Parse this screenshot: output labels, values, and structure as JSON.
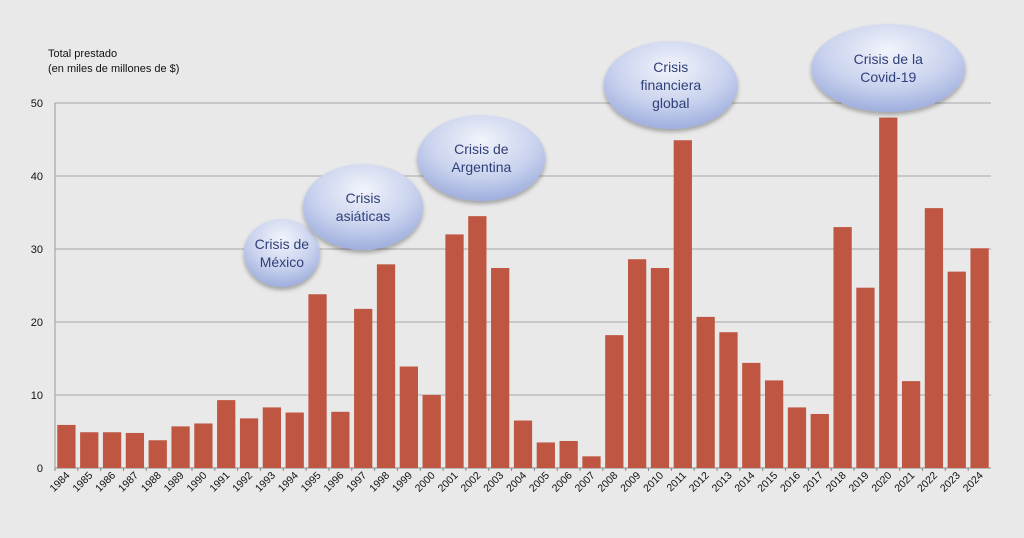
{
  "chart_data": {
    "type": "bar",
    "title": "",
    "ylabel_line1": "Total prestado",
    "ylabel_line2": "(en miles de millones de $)",
    "xlabel": "",
    "ylim": [
      0,
      50
    ],
    "yticks": [
      0,
      10,
      20,
      30,
      40,
      50
    ],
    "grid": true,
    "bar_color": "#bf5641",
    "categories": [
      "1984",
      "1985",
      "1986",
      "1987",
      "1988",
      "1989",
      "1990",
      "1991",
      "1992",
      "1993",
      "1994",
      "1995",
      "1996",
      "1997",
      "1998",
      "1999",
      "2000",
      "2001",
      "2002",
      "2003",
      "2004",
      "2005",
      "2006",
      "2007",
      "2008",
      "2009",
      "2010",
      "2011",
      "2012",
      "2013",
      "2014",
      "2015",
      "2016",
      "2017",
      "2018",
      "2019",
      "2020",
      "2021",
      "2022",
      "2023",
      "2024"
    ],
    "values": [
      5.9,
      4.9,
      4.9,
      4.8,
      3.8,
      5.7,
      6.1,
      9.3,
      6.8,
      8.3,
      7.6,
      23.8,
      7.7,
      21.8,
      27.9,
      13.9,
      10.0,
      32.0,
      34.5,
      27.4,
      6.5,
      3.5,
      3.7,
      1.6,
      18.2,
      28.6,
      27.4,
      44.9,
      20.7,
      18.6,
      14.4,
      12.0,
      8.3,
      7.4,
      33.0,
      24.7,
      48.0,
      11.9,
      35.6,
      26.9,
      30.1
    ],
    "annotations": [
      {
        "lines": [
          "Crisis de",
          "México"
        ],
        "near": "1994"
      },
      {
        "lines": [
          "Crisis",
          "asiáticas"
        ],
        "near": "1998"
      },
      {
        "lines": [
          "Crisis de",
          "Argentina"
        ],
        "near": "2002"
      },
      {
        "lines": [
          "Crisis",
          "financiera",
          "global"
        ],
        "near": "2011"
      },
      {
        "lines": [
          "Crisis de la",
          "Covid-19"
        ],
        "near": "2020"
      }
    ]
  }
}
